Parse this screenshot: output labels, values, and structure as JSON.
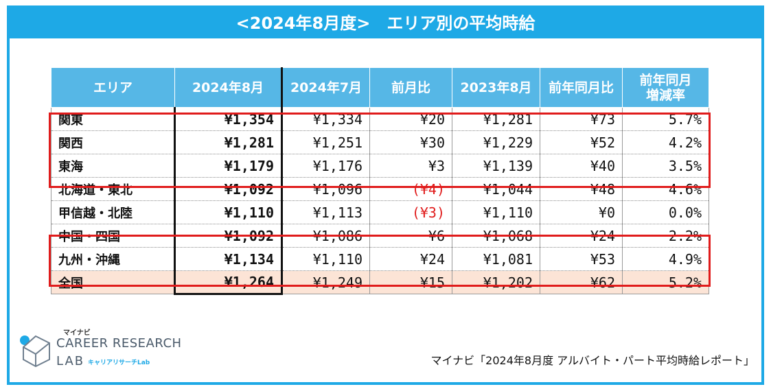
{
  "title": "<2024年8月度>　エリア別の平均時給",
  "table": {
    "headers": [
      "エリア",
      "2024年8月",
      "2024年7月",
      "前月比",
      "2023年8月",
      "前年同月比",
      "前年同月\n増減率"
    ],
    "rows": [
      {
        "area": "関東",
        "aug2024": "¥1,354",
        "jul2024": "¥1,334",
        "mom": "¥20",
        "aug2023": "¥1,281",
        "yoy": "¥73",
        "yoy_rate": "5.7%",
        "mom_negative": false
      },
      {
        "area": "関西",
        "aug2024": "¥1,281",
        "jul2024": "¥1,251",
        "mom": "¥30",
        "aug2023": "¥1,229",
        "yoy": "¥52",
        "yoy_rate": "4.2%",
        "mom_negative": false
      },
      {
        "area": "東海",
        "aug2024": "¥1,179",
        "jul2024": "¥1,176",
        "mom": "¥3",
        "aug2023": "¥1,139",
        "yoy": "¥40",
        "yoy_rate": "3.5%",
        "mom_negative": false
      },
      {
        "area": "北海道・東北",
        "aug2024": "¥1,092",
        "jul2024": "¥1,096",
        "mom": "(¥4)",
        "aug2023": "¥1,044",
        "yoy": "¥48",
        "yoy_rate": "4.6%",
        "mom_negative": true
      },
      {
        "area": "甲信越・北陸",
        "aug2024": "¥1,110",
        "jul2024": "¥1,113",
        "mom": "(¥3)",
        "aug2023": "¥1,110",
        "yoy": "¥0",
        "yoy_rate": "0.0%",
        "mom_negative": true
      },
      {
        "area": "中国・四国",
        "aug2024": "¥1,092",
        "jul2024": "¥1,086",
        "mom": "¥6",
        "aug2023": "¥1,068",
        "yoy": "¥24",
        "yoy_rate": "2.2%",
        "mom_negative": false
      },
      {
        "area": "九州・沖縄",
        "aug2024": "¥1,134",
        "jul2024": "¥1,110",
        "mom": "¥24",
        "aug2023": "¥1,081",
        "yoy": "¥53",
        "yoy_rate": "4.9%",
        "mom_negative": false
      },
      {
        "area": "全国",
        "aug2024": "¥1,264",
        "jul2024": "¥1,249",
        "mom": "¥15",
        "aug2023": "¥1,202",
        "yoy": "¥62",
        "yoy_rate": "5.2%",
        "mom_negative": false,
        "total": true
      }
    ]
  },
  "logo": {
    "small": "マイナビ",
    "line1": "CAREER RESEARCH",
    "line2": "LAB",
    "sub": "キャリアリサーチLab"
  },
  "source": "マイナビ「2024年8月度 アルバイト・パート平均時給レポート」",
  "colors": {
    "accent": "#1ea9e6",
    "header_bg": "#56b7e6",
    "highlight_border": "#e01b1b",
    "negative_text": "#e01b1b",
    "total_row_bg": "#fce4d6"
  }
}
